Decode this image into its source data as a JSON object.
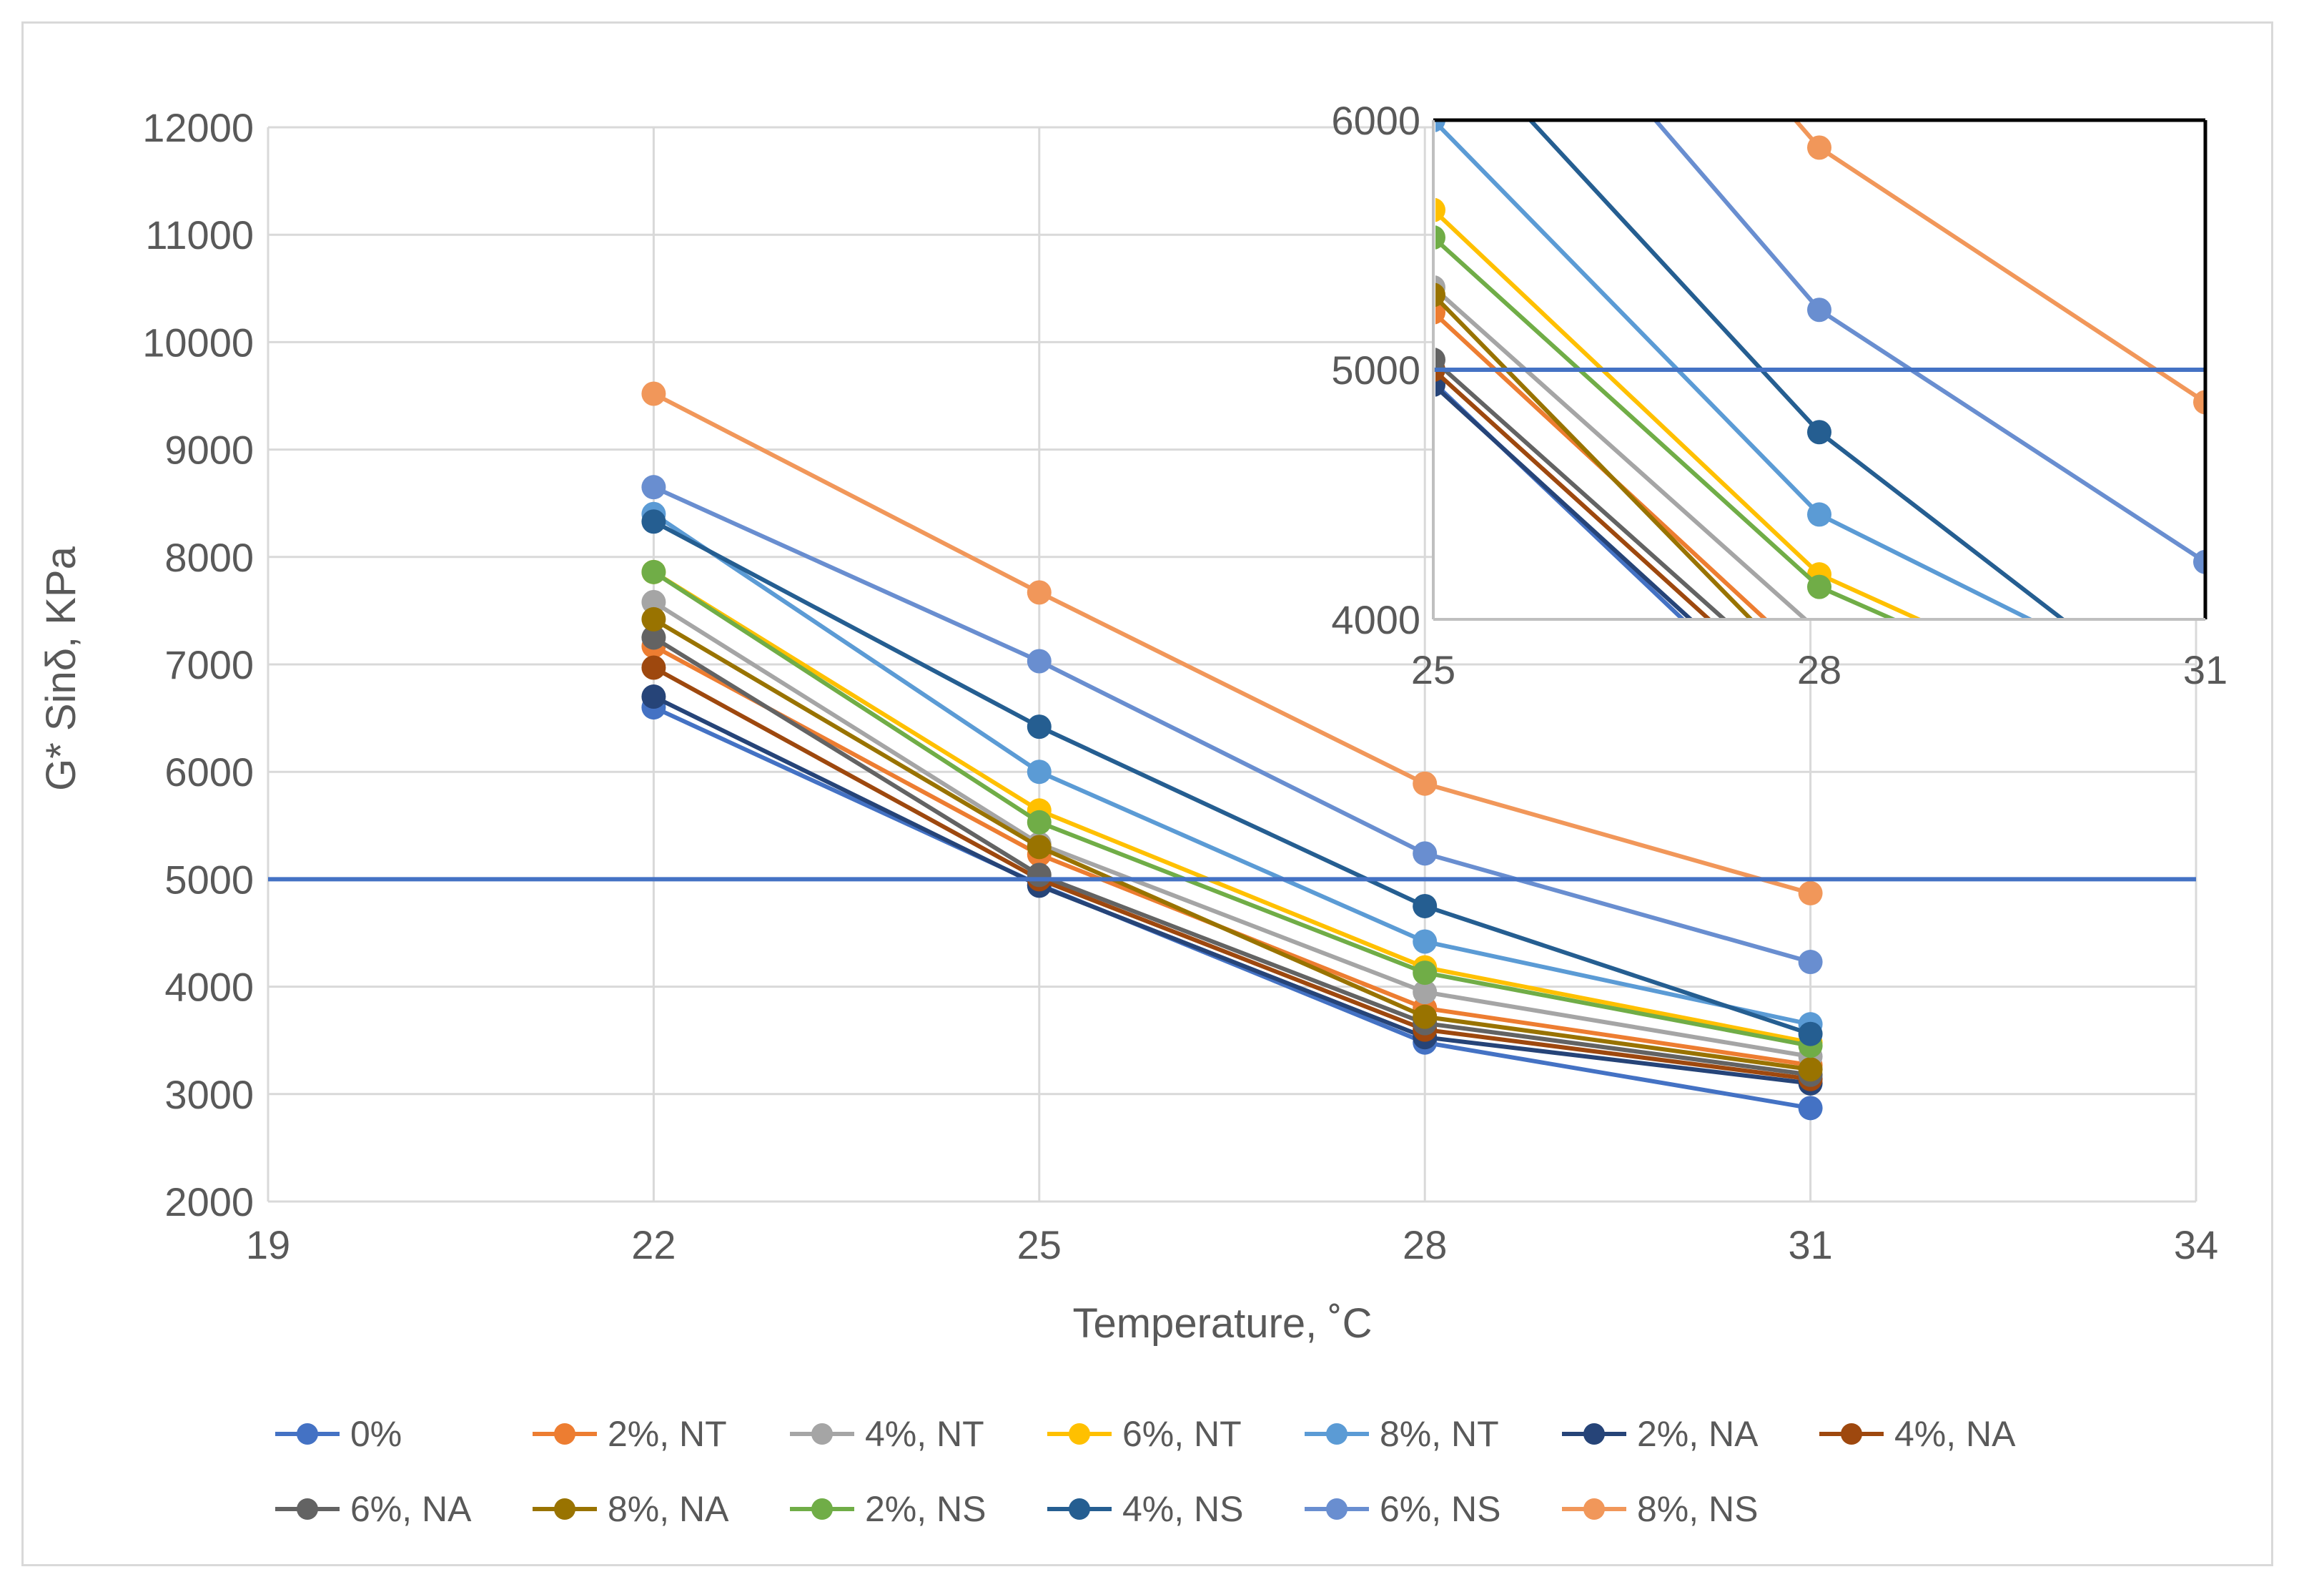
{
  "chart_data": [
    {
      "type": "line",
      "title": "",
      "xlabel": "Temperature, ˚C",
      "ylabel": "G* Sinδ, KPa",
      "xlim": [
        19,
        34
      ],
      "ylim": [
        2000,
        12000
      ],
      "x_ticks": [
        "19",
        "22",
        "25",
        "28",
        "31",
        "34"
      ],
      "y_ticks": [
        "2000",
        "3000",
        "4000",
        "5000",
        "6000",
        "7000",
        "8000",
        "9000",
        "10000",
        "11000",
        "12000"
      ],
      "grid": true,
      "legend_position": "bottom",
      "reference_line": {
        "y": 5000,
        "color": "#4472C4"
      },
      "x": [
        22,
        25,
        28,
        31
      ],
      "series": [
        {
          "name": "0%",
          "color": "#4472C4",
          "values": [
            6600,
            4950,
            3480,
            2870
          ]
        },
        {
          "name": "2%, NT",
          "color": "#ED7D31",
          "values": [
            7170,
            5230,
            3800,
            3270
          ]
        },
        {
          "name": "4%, NT",
          "color": "#A5A5A5",
          "values": [
            7580,
            5330,
            3950,
            3350
          ]
        },
        {
          "name": "6%, NT",
          "color": "#FFC000",
          "values": [
            7860,
            5640,
            4180,
            3480
          ]
        },
        {
          "name": "8%, NT",
          "color": "#5B9BD5",
          "values": [
            8400,
            6000,
            4420,
            3650
          ]
        },
        {
          "name": "2%, NA",
          "color": "#264478",
          "values": [
            6700,
            4940,
            3530,
            3100
          ]
        },
        {
          "name": "4%, NA",
          "color": "#9E480E",
          "values": [
            6970,
            5000,
            3600,
            3140
          ]
        },
        {
          "name": "6%, NA",
          "color": "#636363",
          "values": [
            7250,
            5040,
            3660,
            3180
          ]
        },
        {
          "name": "8%, NA",
          "color": "#997300",
          "values": [
            7420,
            5300,
            3720,
            3230
          ]
        },
        {
          "name": "2%, NS",
          "color": "#70AD47",
          "values": [
            7860,
            5530,
            4130,
            3450
          ]
        },
        {
          "name": "4%, NS",
          "color": "#255E91",
          "values": [
            8330,
            6420,
            4750,
            3560
          ]
        },
        {
          "name": "6%, NS",
          "color": "#698ED0",
          "values": [
            8650,
            7030,
            5240,
            4230
          ]
        },
        {
          "name": "8%, NS",
          "color": "#F1975A",
          "values": [
            9520,
            7670,
            5890,
            4870
          ]
        }
      ]
    },
    {
      "type": "line",
      "title": "",
      "xlabel": "",
      "ylabel": "",
      "xlim": [
        25,
        31
      ],
      "ylim": [
        4000,
        6000
      ],
      "x_ticks": [
        "25",
        "28",
        "31"
      ],
      "y_ticks": [
        "4000",
        "5000",
        "6000"
      ],
      "grid": false,
      "reference_line": {
        "y": 5000,
        "color": "#4472C4"
      },
      "note_inset_of": "main"
    }
  ]
}
